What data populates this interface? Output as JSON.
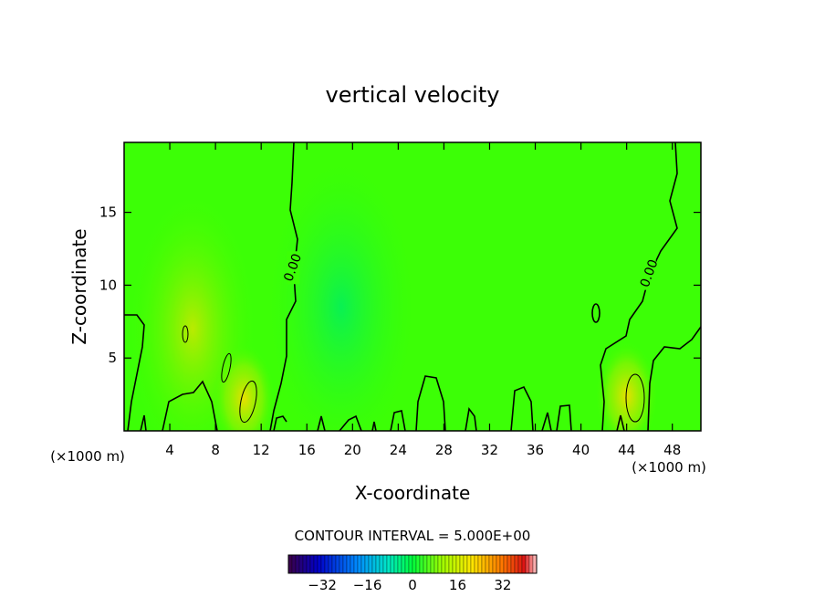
{
  "chart_data": {
    "type": "heatmap",
    "title": "vertical velocity",
    "xlabel": "X-coordinate",
    "ylabel": "Z-coordinate",
    "x_unit_left": "(×1000 m)",
    "x_unit_right": "(×1000 m)",
    "xlim": [
      0,
      50.5
    ],
    "ylim": [
      0,
      19.8
    ],
    "x_ticks": [
      4,
      8,
      12,
      16,
      20,
      24,
      28,
      32,
      36,
      40,
      44,
      48
    ],
    "y_ticks": [
      5,
      10,
      15
    ],
    "contour_interval_text": "CONTOUR INTERVAL = 5.000E+00",
    "contour_labels": [
      {
        "text": "0.00",
        "x": 14.8,
        "y": 11.2
      },
      {
        "text": "0.00",
        "x": 46.0,
        "y": 10.8
      }
    ],
    "colorbar": {
      "min": -44,
      "max": 44,
      "ticks": [
        -32,
        -16,
        0,
        16,
        32
      ]
    },
    "features": [
      {
        "kind": "updraft",
        "x": 6.0,
        "y": 7.0,
        "level": 6
      },
      {
        "kind": "updraft",
        "x": 10.5,
        "y": 2.2,
        "level": 10
      },
      {
        "kind": "updraft",
        "x": 44.0,
        "y": 2.4,
        "level": 12
      },
      {
        "kind": "downdraft",
        "x": 19.0,
        "y": 8.5,
        "level": -5
      }
    ]
  }
}
